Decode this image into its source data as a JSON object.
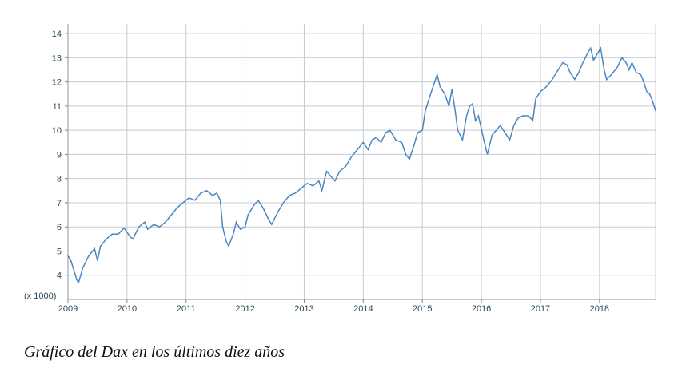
{
  "caption": "Gráfico del Dax en los últimos diez años",
  "chart_data": {
    "type": "line",
    "title": "",
    "xlabel": "",
    "ylabel": "",
    "y_unit_label": "(x 1000)",
    "xlim": [
      2009.0,
      2018.95
    ],
    "ylim": [
      3.0,
      14.4
    ],
    "grid": true,
    "line_color": "#4a86c0",
    "grid_color": "#c8ccd0",
    "x_ticks": [
      2009,
      2010,
      2011,
      2012,
      2013,
      2014,
      2015,
      2016,
      2017,
      2018
    ],
    "x_tick_labels": [
      "2009",
      "2010",
      "2011",
      "2012",
      "2013",
      "2014",
      "2015",
      "2016",
      "2017",
      "2018"
    ],
    "y_ticks": [
      4,
      5,
      6,
      7,
      8,
      9,
      10,
      11,
      12,
      13,
      14
    ],
    "y_tick_labels": [
      "4",
      "5",
      "6",
      "7",
      "8",
      "9",
      "10",
      "11",
      "12",
      "13",
      "14"
    ],
    "series": [
      {
        "name": "DAX",
        "points": [
          [
            2009.0,
            4.8
          ],
          [
            2009.05,
            4.6
          ],
          [
            2009.1,
            4.2
          ],
          [
            2009.15,
            3.8
          ],
          [
            2009.18,
            3.7
          ],
          [
            2009.25,
            4.3
          ],
          [
            2009.35,
            4.8
          ],
          [
            2009.45,
            5.1
          ],
          [
            2009.5,
            4.6
          ],
          [
            2009.55,
            5.2
          ],
          [
            2009.65,
            5.5
          ],
          [
            2009.75,
            5.7
          ],
          [
            2009.85,
            5.7
          ],
          [
            2009.95,
            5.95
          ],
          [
            2010.05,
            5.6
          ],
          [
            2010.1,
            5.5
          ],
          [
            2010.2,
            6.0
          ],
          [
            2010.3,
            6.2
          ],
          [
            2010.35,
            5.9
          ],
          [
            2010.45,
            6.1
          ],
          [
            2010.55,
            6.0
          ],
          [
            2010.65,
            6.2
          ],
          [
            2010.75,
            6.5
          ],
          [
            2010.85,
            6.8
          ],
          [
            2010.95,
            7.0
          ],
          [
            2011.05,
            7.2
          ],
          [
            2011.15,
            7.1
          ],
          [
            2011.25,
            7.4
          ],
          [
            2011.35,
            7.5
          ],
          [
            2011.45,
            7.3
          ],
          [
            2011.52,
            7.4
          ],
          [
            2011.58,
            7.1
          ],
          [
            2011.62,
            6.0
          ],
          [
            2011.68,
            5.4
          ],
          [
            2011.72,
            5.2
          ],
          [
            2011.8,
            5.7
          ],
          [
            2011.85,
            6.2
          ],
          [
            2011.92,
            5.9
          ],
          [
            2012.0,
            6.0
          ],
          [
            2012.05,
            6.5
          ],
          [
            2012.15,
            6.9
          ],
          [
            2012.22,
            7.1
          ],
          [
            2012.3,
            6.8
          ],
          [
            2012.4,
            6.3
          ],
          [
            2012.45,
            6.1
          ],
          [
            2012.55,
            6.6
          ],
          [
            2012.65,
            7.0
          ],
          [
            2012.75,
            7.3
          ],
          [
            2012.85,
            7.4
          ],
          [
            2012.95,
            7.6
          ],
          [
            2013.05,
            7.8
          ],
          [
            2013.15,
            7.7
          ],
          [
            2013.25,
            7.9
          ],
          [
            2013.3,
            7.5
          ],
          [
            2013.38,
            8.3
          ],
          [
            2013.45,
            8.1
          ],
          [
            2013.52,
            7.9
          ],
          [
            2013.6,
            8.3
          ],
          [
            2013.7,
            8.5
          ],
          [
            2013.8,
            8.9
          ],
          [
            2013.9,
            9.2
          ],
          [
            2014.0,
            9.5
          ],
          [
            2014.08,
            9.2
          ],
          [
            2014.15,
            9.6
          ],
          [
            2014.22,
            9.7
          ],
          [
            2014.3,
            9.5
          ],
          [
            2014.38,
            9.9
          ],
          [
            2014.45,
            10.0
          ],
          [
            2014.55,
            9.6
          ],
          [
            2014.65,
            9.5
          ],
          [
            2014.72,
            9.0
          ],
          [
            2014.78,
            8.8
          ],
          [
            2014.85,
            9.3
          ],
          [
            2014.92,
            9.9
          ],
          [
            2015.0,
            10.0
          ],
          [
            2015.05,
            10.8
          ],
          [
            2015.1,
            11.2
          ],
          [
            2015.18,
            11.8
          ],
          [
            2015.25,
            12.3
          ],
          [
            2015.3,
            11.8
          ],
          [
            2015.38,
            11.5
          ],
          [
            2015.45,
            11.0
          ],
          [
            2015.5,
            11.7
          ],
          [
            2015.55,
            10.9
          ],
          [
            2015.6,
            10.0
          ],
          [
            2015.68,
            9.6
          ],
          [
            2015.75,
            10.6
          ],
          [
            2015.8,
            11.0
          ],
          [
            2015.85,
            11.1
          ],
          [
            2015.9,
            10.4
          ],
          [
            2015.95,
            10.6
          ],
          [
            2016.05,
            9.5
          ],
          [
            2016.1,
            9.0
          ],
          [
            2016.18,
            9.8
          ],
          [
            2016.25,
            10.0
          ],
          [
            2016.32,
            10.2
          ],
          [
            2016.4,
            9.9
          ],
          [
            2016.48,
            9.6
          ],
          [
            2016.55,
            10.2
          ],
          [
            2016.62,
            10.5
          ],
          [
            2016.7,
            10.6
          ],
          [
            2016.8,
            10.6
          ],
          [
            2016.87,
            10.4
          ],
          [
            2016.92,
            11.3
          ],
          [
            2017.0,
            11.6
          ],
          [
            2017.1,
            11.8
          ],
          [
            2017.2,
            12.1
          ],
          [
            2017.3,
            12.5
          ],
          [
            2017.38,
            12.8
          ],
          [
            2017.45,
            12.7
          ],
          [
            2017.5,
            12.4
          ],
          [
            2017.58,
            12.1
          ],
          [
            2017.65,
            12.4
          ],
          [
            2017.72,
            12.8
          ],
          [
            2017.8,
            13.2
          ],
          [
            2017.85,
            13.4
          ],
          [
            2017.9,
            12.9
          ],
          [
            2017.95,
            13.1
          ],
          [
            2018.02,
            13.4
          ],
          [
            2018.08,
            12.5
          ],
          [
            2018.12,
            12.1
          ],
          [
            2018.2,
            12.3
          ],
          [
            2018.3,
            12.6
          ],
          [
            2018.38,
            13.0
          ],
          [
            2018.45,
            12.8
          ],
          [
            2018.5,
            12.5
          ],
          [
            2018.55,
            12.8
          ],
          [
            2018.62,
            12.4
          ],
          [
            2018.7,
            12.3
          ],
          [
            2018.75,
            12.0
          ],
          [
            2018.8,
            11.6
          ],
          [
            2018.85,
            11.5
          ],
          [
            2018.9,
            11.2
          ],
          [
            2018.95,
            10.8
          ]
        ]
      }
    ]
  }
}
